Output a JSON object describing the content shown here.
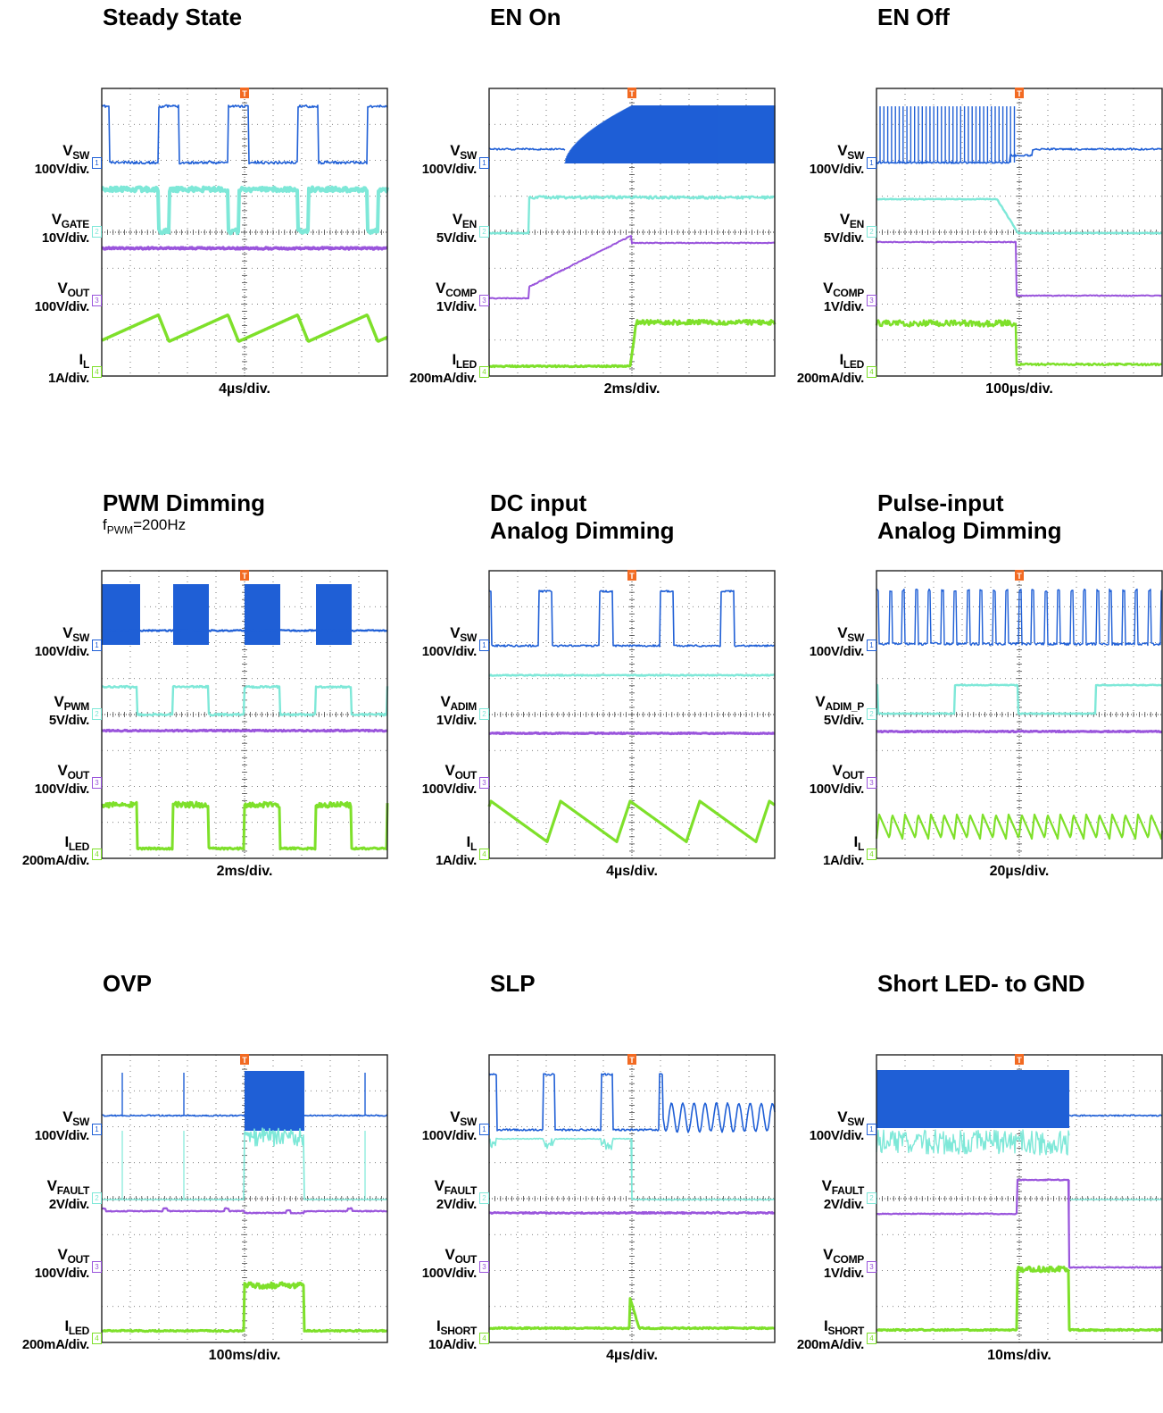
{
  "colors": {
    "ch1": "#1f5fd6",
    "ch2": "#7ee8d8",
    "ch3": "#9a55dc",
    "ch4": "#7ee02a",
    "trigger": "#f26a22"
  },
  "panels": [
    {
      "title": [
        "Steady State"
      ],
      "subtitle": "",
      "timebase": "4µs/div.",
      "channels": [
        {
          "sig": "V",
          "sub": "SW",
          "scale": "100V/div.",
          "ch": "1"
        },
        {
          "sig": "V",
          "sub": "GATE",
          "scale": "10V/div.",
          "ch": "2"
        },
        {
          "sig": "V",
          "sub": "OUT",
          "scale": "100V/div.",
          "ch": "3"
        },
        {
          "sig": "I",
          "sub": "L",
          "scale": "1A/div.",
          "ch": "4"
        }
      ]
    },
    {
      "title": [
        "EN On"
      ],
      "subtitle": "",
      "timebase": "2ms/div.",
      "channels": [
        {
          "sig": "V",
          "sub": "SW",
          "scale": "100V/div.",
          "ch": "1"
        },
        {
          "sig": "V",
          "sub": "EN",
          "scale": "5V/div.",
          "ch": "2"
        },
        {
          "sig": "V",
          "sub": "COMP",
          "scale": "1V/div.",
          "ch": "3"
        },
        {
          "sig": "I",
          "sub": "LED",
          "scale": "200mA/div.",
          "ch": "4"
        }
      ]
    },
    {
      "title": [
        "EN Off"
      ],
      "subtitle": "",
      "timebase": "100µs/div.",
      "channels": [
        {
          "sig": "V",
          "sub": "SW",
          "scale": "100V/div.",
          "ch": "1"
        },
        {
          "sig": "V",
          "sub": "EN",
          "scale": "5V/div.",
          "ch": "2"
        },
        {
          "sig": "V",
          "sub": "COMP",
          "scale": "1V/div.",
          "ch": "3"
        },
        {
          "sig": "I",
          "sub": "LED",
          "scale": "200mA/div.",
          "ch": "4"
        }
      ]
    },
    {
      "title": [
        "PWM Dimming"
      ],
      "subtitle": "PWM",
      "timebase": "2ms/div.",
      "subtitle_text": {
        "f": "f",
        "sub": "PWM",
        "rest": "=200Hz"
      },
      "channels": [
        {
          "sig": "V",
          "sub": "SW",
          "scale": "100V/div.",
          "ch": "1"
        },
        {
          "sig": "V",
          "sub": "PWM",
          "scale": "5V/div.",
          "ch": "2"
        },
        {
          "sig": "V",
          "sub": "OUT",
          "scale": "100V/div.",
          "ch": "3"
        },
        {
          "sig": "I",
          "sub": "LED",
          "scale": "200mA/div.",
          "ch": "4"
        }
      ]
    },
    {
      "title": [
        "DC input",
        "Analog Dimming"
      ],
      "subtitle": "",
      "timebase": "4µs/div.",
      "channels": [
        {
          "sig": "V",
          "sub": "SW",
          "scale": "100V/div.",
          "ch": "1"
        },
        {
          "sig": "V",
          "sub": "ADIM",
          "scale": "1V/div.",
          "ch": "2"
        },
        {
          "sig": "V",
          "sub": "OUT",
          "scale": "100V/div.",
          "ch": "3"
        },
        {
          "sig": "I",
          "sub": "L",
          "scale": "1A/div.",
          "ch": "4"
        }
      ]
    },
    {
      "title": [
        "Pulse-input",
        "Analog Dimming"
      ],
      "subtitle": "",
      "timebase": "20µs/div.",
      "channels": [
        {
          "sig": "V",
          "sub": "SW",
          "scale": "100V/div.",
          "ch": "1"
        },
        {
          "sig": "V",
          "sub": "ADIM_P",
          "scale": "5V/div.",
          "ch": "2"
        },
        {
          "sig": "V",
          "sub": "OUT",
          "scale": "100V/div.",
          "ch": "3"
        },
        {
          "sig": "I",
          "sub": "L",
          "scale": "1A/div.",
          "ch": "4"
        }
      ]
    },
    {
      "title": [
        "OVP"
      ],
      "subtitle": "",
      "timebase": "100ms/div.",
      "channels": [
        {
          "sig": "V",
          "sub": "SW",
          "scale": "100V/div.",
          "ch": "1"
        },
        {
          "sig": "V",
          "sub": "FAULT",
          "scale": "2V/div.",
          "ch": "2"
        },
        {
          "sig": "V",
          "sub": "OUT",
          "scale": "100V/div.",
          "ch": "3"
        },
        {
          "sig": "I",
          "sub": "LED",
          "scale": "200mA/div.",
          "ch": "4"
        }
      ]
    },
    {
      "title": [
        "SLP"
      ],
      "subtitle": "",
      "timebase": "4µs/div.",
      "channels": [
        {
          "sig": "V",
          "sub": "SW",
          "scale": "100V/div.",
          "ch": "1"
        },
        {
          "sig": "V",
          "sub": "FAULT",
          "scale": "2V/div.",
          "ch": "2"
        },
        {
          "sig": "V",
          "sub": "OUT",
          "scale": "100V/div.",
          "ch": "3"
        },
        {
          "sig": "I",
          "sub": "SHORT",
          "scale": "10A/div.",
          "ch": "4"
        }
      ]
    },
    {
      "title": [
        "Short LED- to GND"
      ],
      "subtitle": "",
      "timebase": "10ms/div.",
      "channels": [
        {
          "sig": "V",
          "sub": "SW",
          "scale": "100V/div.",
          "ch": "1"
        },
        {
          "sig": "V",
          "sub": "FAULT",
          "scale": "2V/div.",
          "ch": "2"
        },
        {
          "sig": "V",
          "sub": "COMP",
          "scale": "1V/div.",
          "ch": "3"
        },
        {
          "sig": "I",
          "sub": "SHORT",
          "scale": "200mA/div.",
          "ch": "4"
        }
      ]
    }
  ],
  "chart_data": {
    "type": "line",
    "description_kind": "oscilloscope waveform grid (3x3)",
    "grid": {
      "x_divisions": 10,
      "y_divisions": 8
    },
    "trigger_marker": "T",
    "channel_numbers": [
      "1",
      "2",
      "3",
      "4"
    ]
  }
}
